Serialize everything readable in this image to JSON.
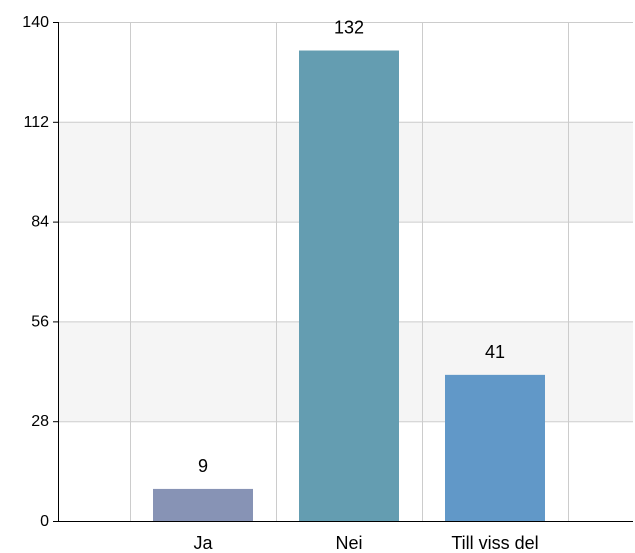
{
  "chart_data": {
    "type": "bar",
    "categories": [
      "Ja",
      "Nei",
      "Till viss del"
    ],
    "values": [
      9,
      132,
      41
    ],
    "ylim": [
      0,
      140
    ],
    "yticks": [
      0,
      28,
      56,
      84,
      112,
      140
    ],
    "grid": true,
    "legend": "none",
    "title": "",
    "xlabel": "",
    "ylabel": ""
  },
  "colors": {
    "bars": [
      "#8793b5",
      "#649db1",
      "#6198c8"
    ],
    "band": "#f5f5f5",
    "grid": "#cccccc",
    "axis": "#000000"
  }
}
